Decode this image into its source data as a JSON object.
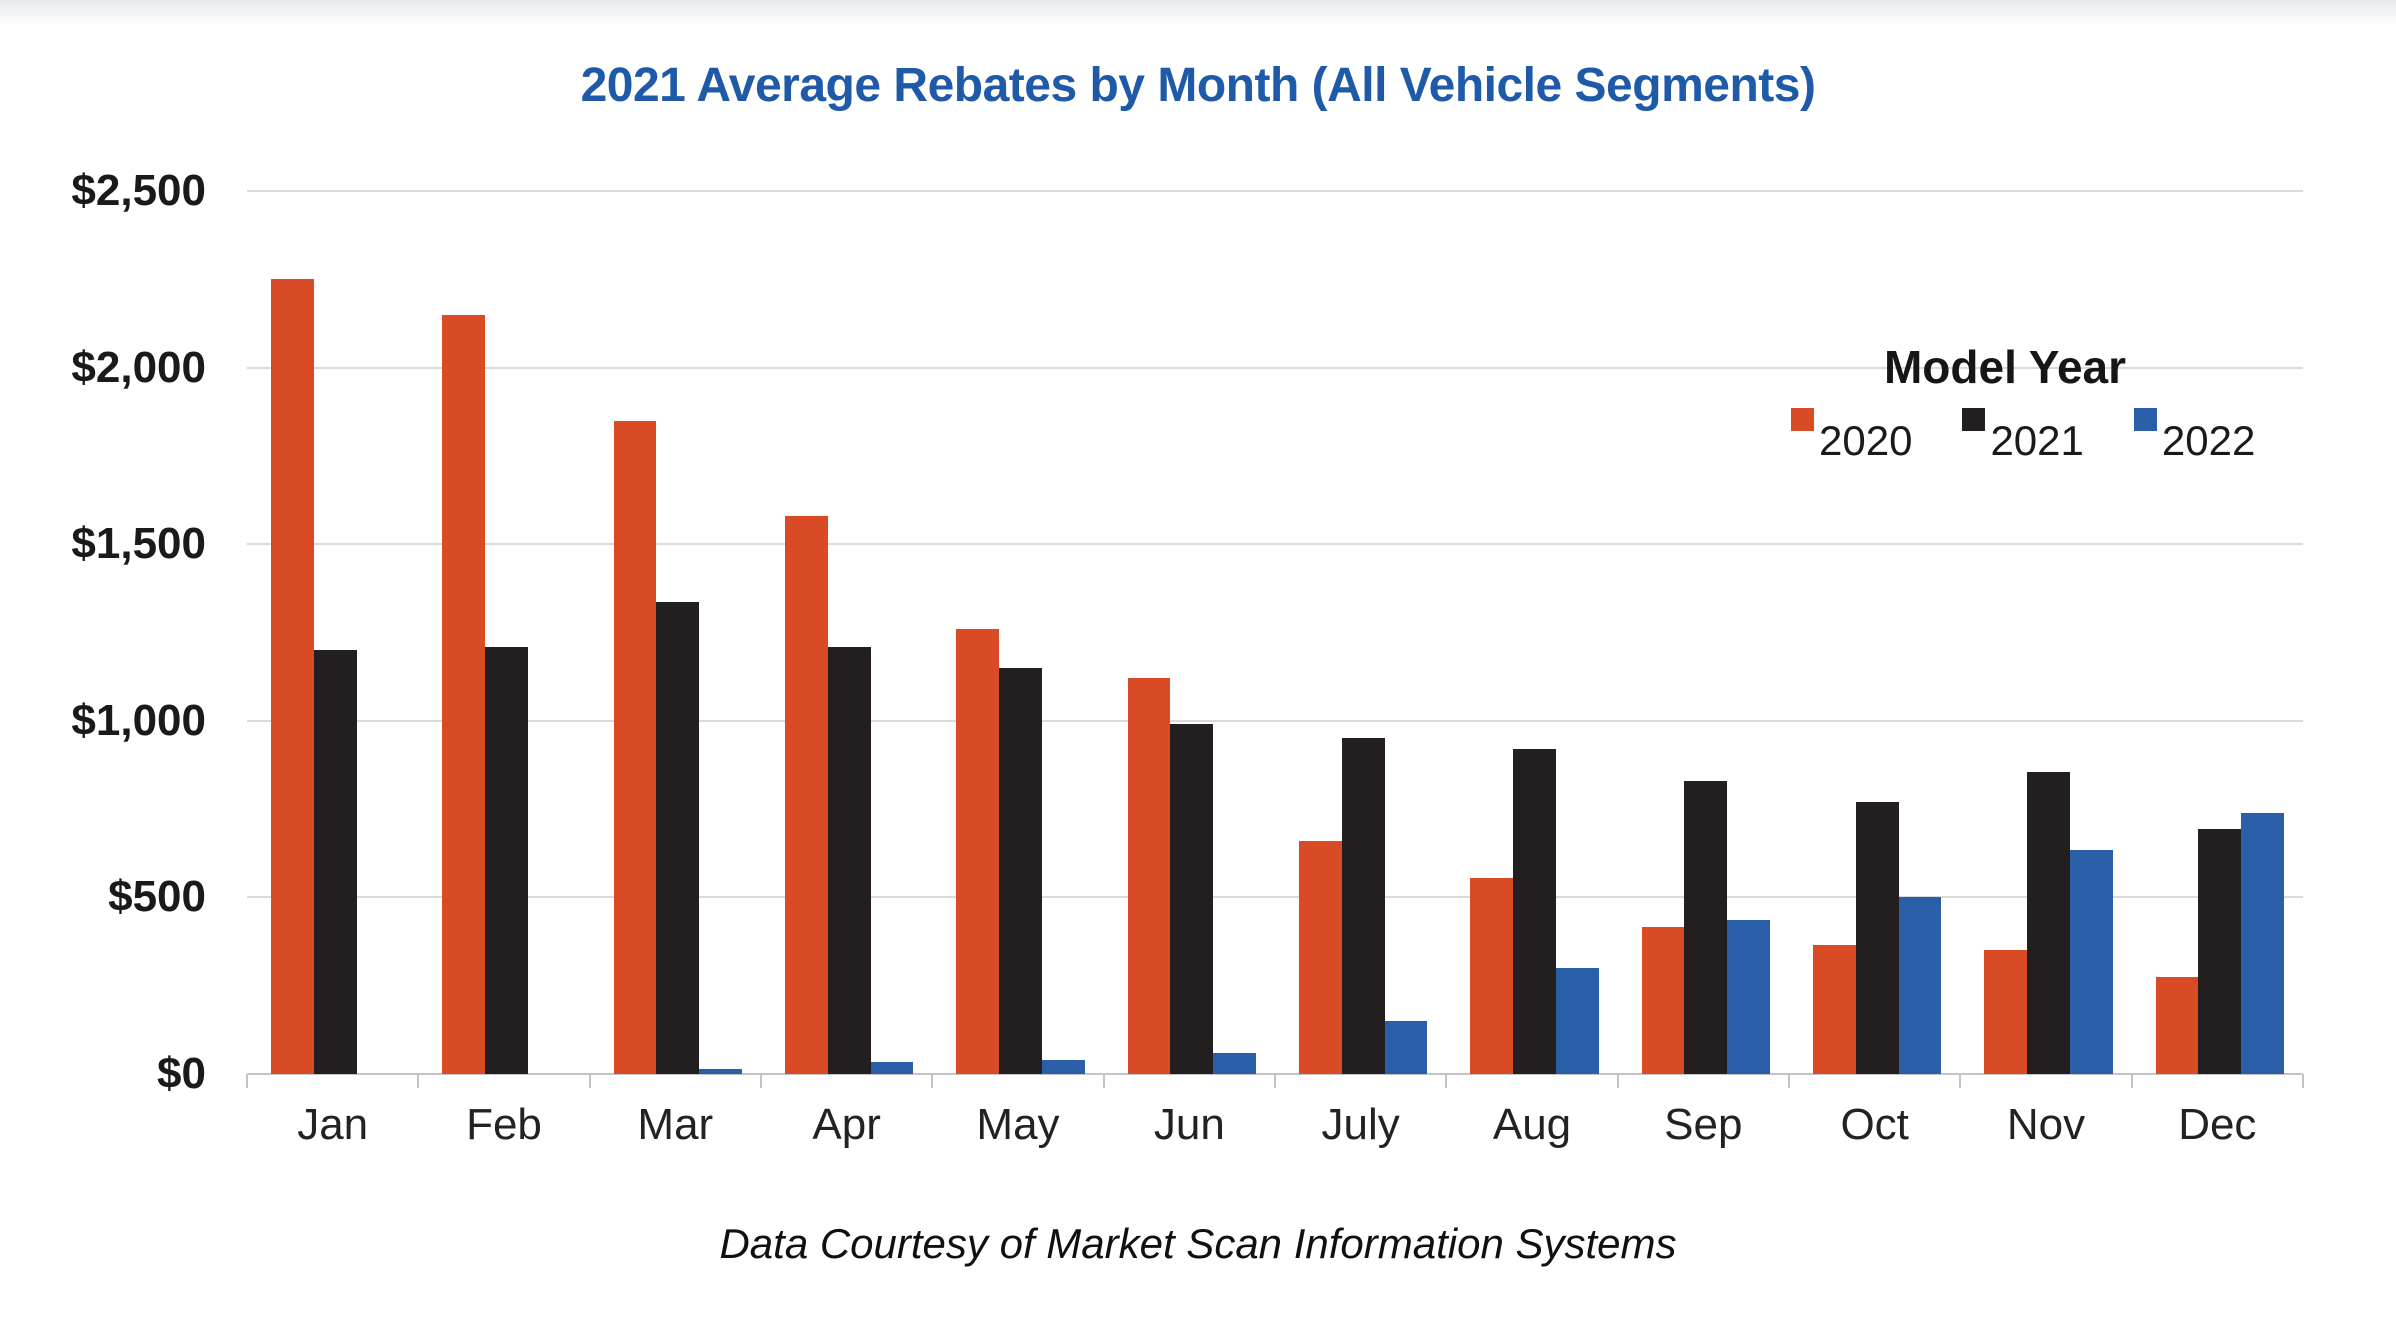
{
  "title": "2021 Average Rebates by Month (All Vehicle Segments)",
  "footer": "Data Courtesy of Market Scan Information Systems",
  "legend": {
    "title": "Model Year",
    "items": [
      {
        "label": "2020",
        "color": "#d94b24"
      },
      {
        "label": "2021",
        "color": "#231f20"
      },
      {
        "label": "2022",
        "color": "#2b5ea8"
      }
    ]
  },
  "y_axis": {
    "tick_labels": [
      "$0",
      "$500",
      "$1,000",
      "$1,500",
      "$2,000",
      "$2,500"
    ],
    "min": 0,
    "max": 2500,
    "step": 500
  },
  "chart_data": {
    "type": "bar",
    "title": "2021 Average Rebates by Month (All Vehicle Segments)",
    "categories": [
      "Jan",
      "Feb",
      "Mar",
      "Apr",
      "May",
      "Jun",
      "July",
      "Aug",
      "Sep",
      "Oct",
      "Nov",
      "Dec"
    ],
    "series": [
      {
        "name": "2020",
        "color": "#d94b24",
        "values": [
          2250,
          2150,
          1850,
          1580,
          1260,
          1120,
          660,
          555,
          415,
          365,
          350,
          275
        ]
      },
      {
        "name": "2021",
        "color": "#231f20",
        "values": [
          1200,
          1210,
          1335,
          1210,
          1150,
          990,
          950,
          920,
          830,
          770,
          855,
          695
        ]
      },
      {
        "name": "2022",
        "color": "#2b5ea8",
        "values": [
          0,
          0,
          15,
          35,
          40,
          60,
          150,
          300,
          435,
          500,
          635,
          740
        ]
      }
    ],
    "ylabel": "",
    "xlabel": "",
    "ylim": [
      0,
      2500
    ],
    "grid": true,
    "legend_title": "Model Year",
    "legend_position": "upper right"
  },
  "colors": {
    "title_text": "#1f5aa8",
    "axis_text": "#1a1a1a",
    "gridline": "#dadada",
    "background": "#ffffff"
  }
}
